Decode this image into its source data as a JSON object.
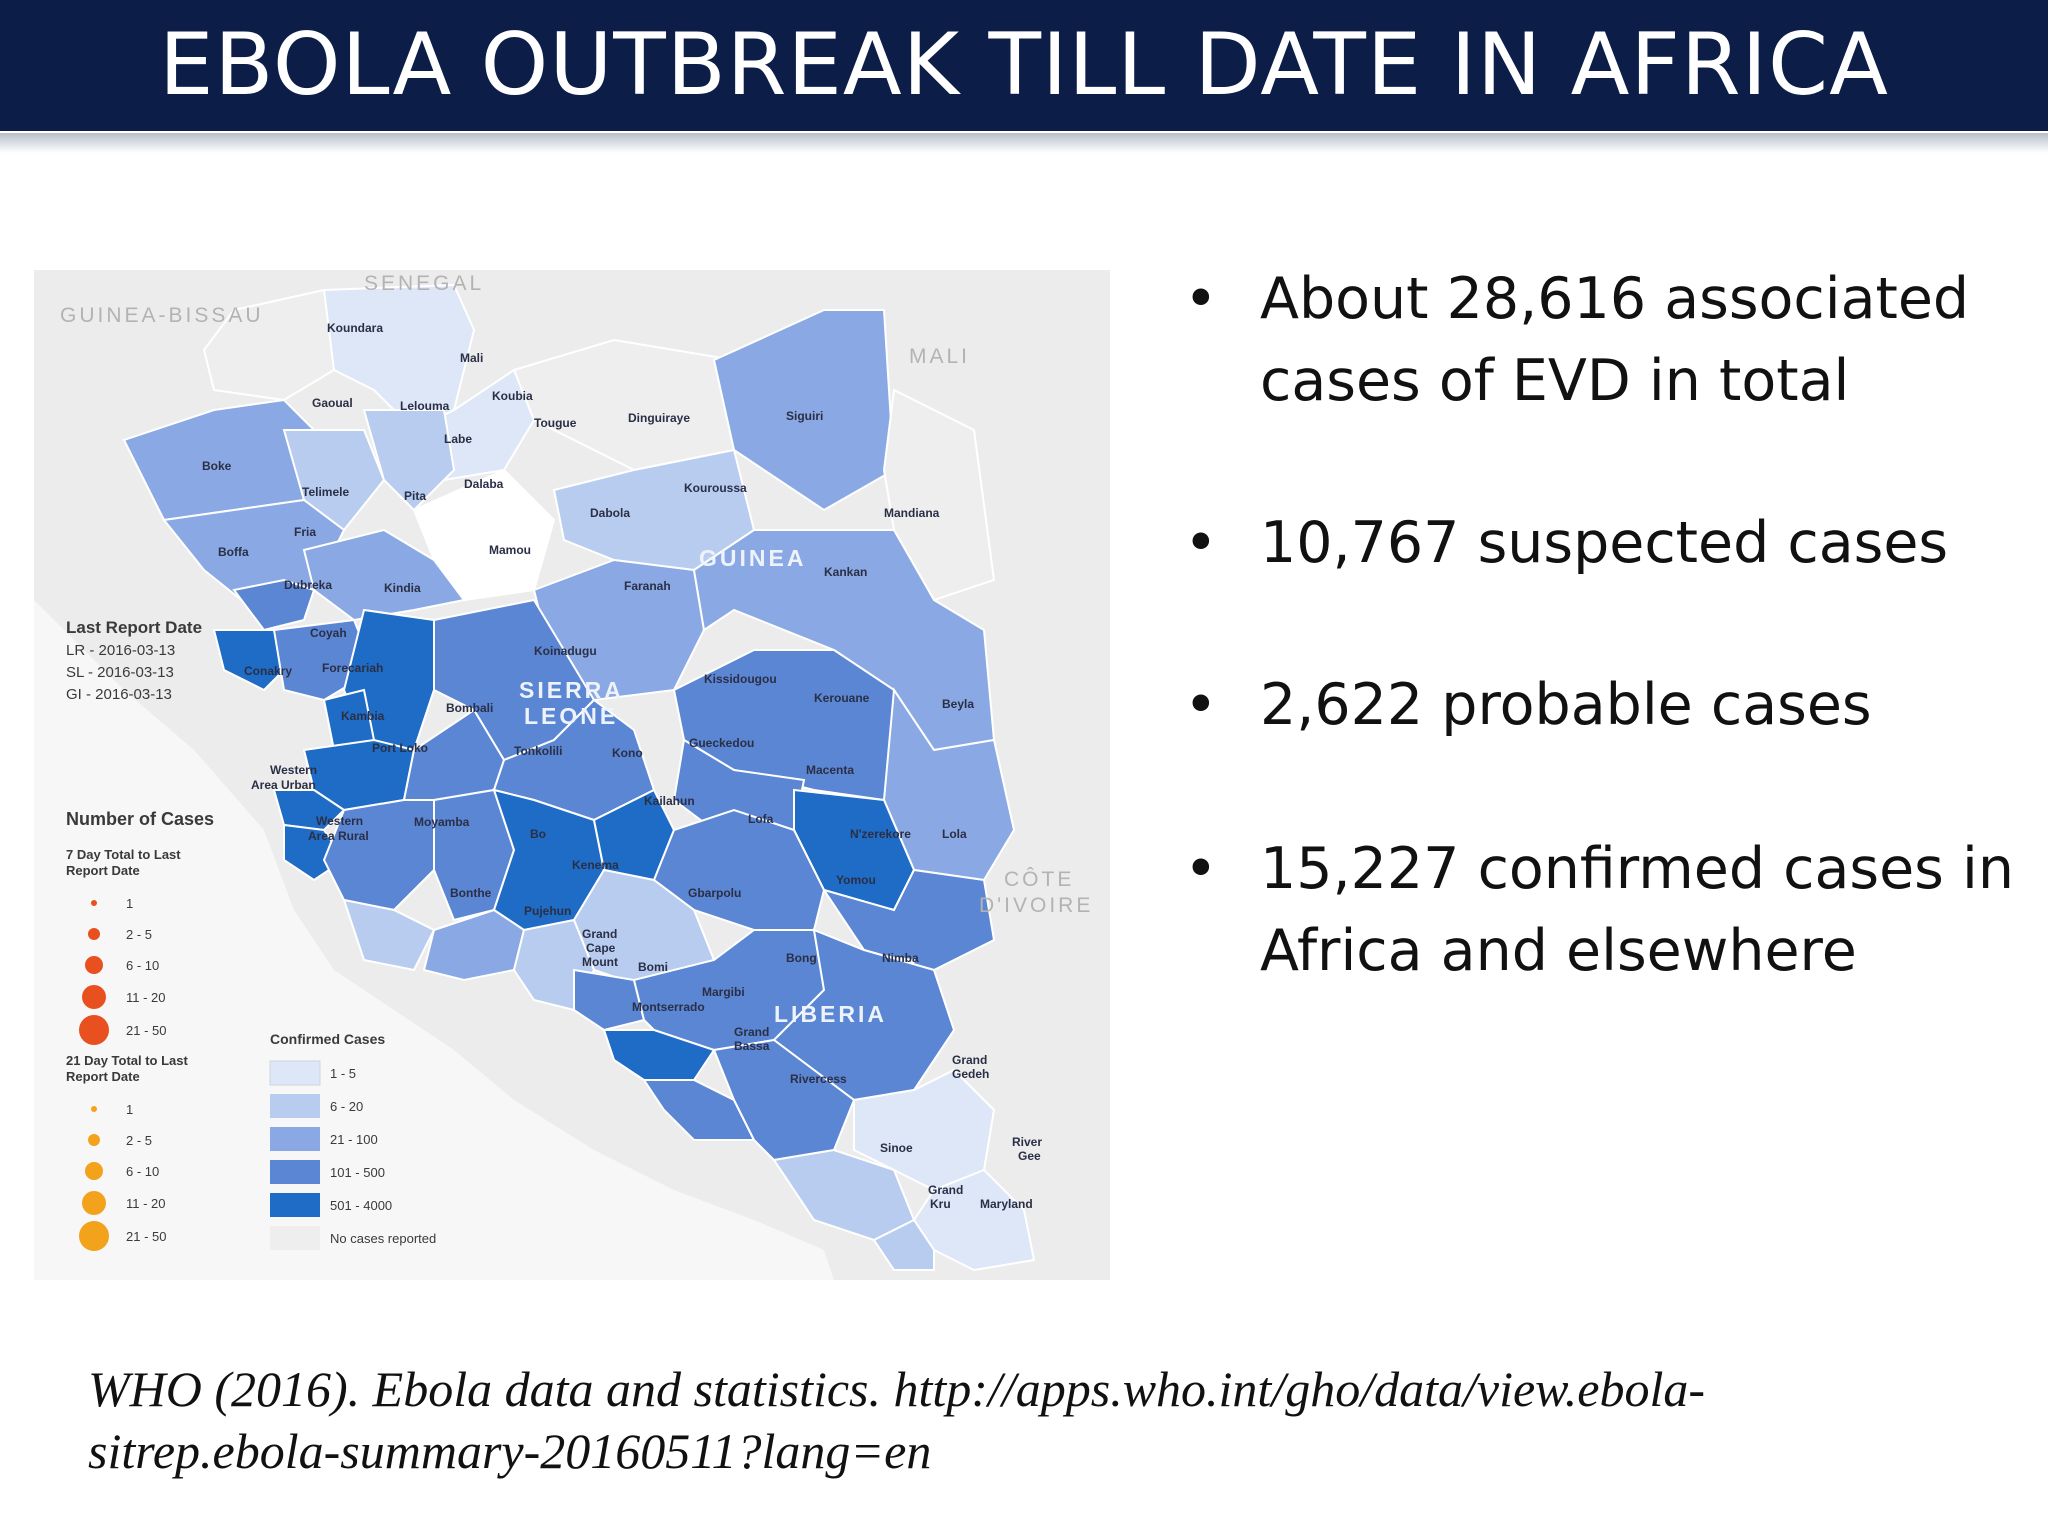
{
  "slide": {
    "title": "EBOLA OUTBREAK TILL DATE IN AFRICA"
  },
  "bullets": [
    "About 28,616 associated cases of EVD in total",
    "10,767 suspected cases",
    "2,622 probable cases",
    "15,227 confirmed cases in Africa and elsewhere"
  ],
  "citation": "WHO (2016). Ebola data and statistics. http://apps.who.int/gho/data/view.ebola-sitrep.ebola-summary-20160511?lang=en",
  "map": {
    "countries": {
      "senegal": "SENEGAL",
      "guinea_bissau": "GUINEA-BISSAU",
      "mali": "MALI",
      "guinea": "GUINEA",
      "sierra_leone_1": "SIERRA",
      "sierra_leone_2": "LEONE",
      "liberia": "LIBERIA",
      "cote_1": "CÔTE",
      "cote_2": "D'IVOIRE"
    },
    "districts": {
      "koundara": "Koundara",
      "mali": "Mali",
      "koubia": "Koubia",
      "gaoual": "Gaoual",
      "lelouma": "Lelouma",
      "tougue": "Tougue",
      "dinguiraye": "Dinguiraye",
      "siguiri": "Siguiri",
      "labe": "Labe",
      "boke": "Boke",
      "telimele": "Telimele",
      "pita": "Pita",
      "dalaba": "Dalaba",
      "kouroussa": "Kouroussa",
      "dabola": "Dabola",
      "mandiana": "Mandiana",
      "fria": "Fria",
      "boffa": "Boffa",
      "mamou": "Mamou",
      "dubreka": "Dubreka",
      "kindia": "Kindia",
      "faranah": "Faranah",
      "kankan": "Kankan",
      "coyah": "Coyah",
      "koinadugu": "Koinadugu",
      "conakry": "Conakry",
      "forecariah": "Forecariah",
      "kissidougou": "Kissidougou",
      "bombali": "Bombali",
      "kerouane": "Kerouane",
      "beyla": "Beyla",
      "kambia": "Kambia",
      "port_loko": "Port Loko",
      "tonkolili": "Tonkolili",
      "kono": "Kono",
      "gueckedou": "Gueckedou",
      "macenta": "Macenta",
      "western_urban_1": "Western",
      "western_urban_2": "Area Urban",
      "kailahun": "Kailahun",
      "western_rural_1": "Western",
      "western_rural_2": "Area Rural",
      "moyamba": "Moyamba",
      "bo": "Bo",
      "lofa": "Lofa",
      "nzerekore": "N'zerekore",
      "lola": "Lola",
      "kenema": "Kenema",
      "yomou": "Yomou",
      "bonthe": "Bonthe",
      "gbarpolu": "Gbarpolu",
      "pujehun": "Pujehun",
      "grand_cape_1": "Grand",
      "grand_cape_2": "Cape",
      "grand_cape_3": "Mount",
      "bomi": "Bomi",
      "bong": "Bong",
      "nimba": "Nimba",
      "margibi": "Margibi",
      "montserrado": "Montserrado",
      "grand_bassa_1": "Grand",
      "grand_bassa_2": "Bassa",
      "rivercess": "Rivercess",
      "grand_gedeh_1": "Grand",
      "grand_gedeh_2": "Gedeh",
      "sinoe": "Sinoe",
      "river_gee_1": "River",
      "river_gee_2": "Gee",
      "grand_kru_1": "Grand",
      "grand_kru_2": "Kru",
      "maryland": "Maryland"
    },
    "last_report": {
      "heading": "Last Report Date",
      "lr": "LR - 2016-03-13",
      "sl": "SL - 2016-03-13",
      "gi": "GI - 2016-03-13"
    },
    "legend": {
      "number_heading": "Number of Cases",
      "seven_day_1": "7 Day Total to Last",
      "seven_day_2": "Report Date",
      "twentyone_day_1": "21 Day Total to Last",
      "twentyone_day_2": "Report Date",
      "dot_labels": [
        "1",
        "2 - 5",
        "6 - 10",
        "11 - 20",
        "21 - 50"
      ],
      "confirmed_heading": "Confirmed Cases",
      "confirmed_labels": [
        "1 - 5",
        "6 - 20",
        "21 - 100",
        "101 - 500",
        "501 - 4000",
        "No cases reported"
      ],
      "confirmed_colors": [
        "#dde7f7",
        "#b7ccef",
        "#8aa9e4",
        "#5b86d4",
        "#1f6cc6",
        "#eeeeee"
      ],
      "dot_color_7day": "#e8501f",
      "dot_color_21day": "#f2a21b"
    }
  }
}
